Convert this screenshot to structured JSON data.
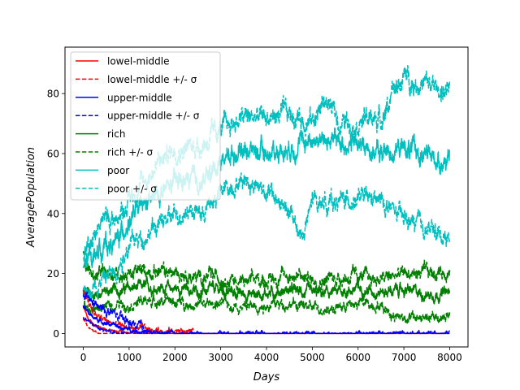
{
  "chart_data": {
    "type": "line",
    "xlabel": "Days",
    "ylabel": "AveragePopulation",
    "xlim": [
      -400,
      8400
    ],
    "ylim": [
      -4.5,
      95.5
    ],
    "xticks": [
      0,
      1000,
      2000,
      3000,
      4000,
      5000,
      6000,
      7000,
      8000
    ],
    "yticks": [
      0,
      20,
      40,
      60,
      80
    ],
    "grid": false,
    "legend_position": "upper-left",
    "legend": [
      {
        "label": "lowel-middle",
        "color": "#ff0000",
        "dash": "solid"
      },
      {
        "label": "lowel-middle +/- σ",
        "color": "#ff0000",
        "dash": "dashed"
      },
      {
        "label": "upper-middle",
        "color": "#0000ff",
        "dash": "solid"
      },
      {
        "label": "upper-middle +/- σ",
        "color": "#0000ff",
        "dash": "dashed"
      },
      {
        "label": "rich",
        "color": "#008000",
        "dash": "solid"
      },
      {
        "label": "rich +/- σ",
        "color": "#008000",
        "dash": "dashed"
      },
      {
        "label": "poor",
        "color": "#00bfbf",
        "dash": "solid"
      },
      {
        "label": "poor +/- σ",
        "color": "#00bfbf",
        "dash": "dashed"
      }
    ],
    "series": [
      {
        "name": "lowel-middle",
        "color": "#ff0000",
        "dash": "solid",
        "noise": 0.4,
        "x": [
          0,
          50,
          100,
          200,
          300,
          400,
          600,
          800,
          1000,
          1200,
          1500,
          2000,
          8000
        ],
        "y": [
          9,
          7,
          5,
          3.5,
          2.5,
          1.8,
          1.0,
          0.6,
          0.3,
          0.2,
          0.1,
          0,
          0
        ]
      },
      {
        "name": "lowel-middle +/- σ",
        "color": "#ff0000",
        "dash": "dashed",
        "noise": 0.9,
        "x": [
          0,
          100,
          200,
          300,
          500,
          700,
          1000,
          1300,
          1700,
          2000,
          2400
        ],
        "y": [
          14,
          11,
          8,
          6,
          4,
          3,
          2,
          1.5,
          1,
          0.8,
          0.5
        ]
      },
      {
        "name": "lowel-middle +/- σ",
        "color": "#ff0000",
        "dash": "dashed",
        "noise": 0.3,
        "x": [
          0,
          100,
          200,
          300,
          400,
          600
        ],
        "y": [
          5,
          2.5,
          1,
          0.3,
          0,
          0
        ]
      },
      {
        "name": "upper-middle",
        "color": "#0000ff",
        "dash": "solid",
        "noise": 0.6,
        "x": [
          0,
          100,
          200,
          400,
          600,
          800,
          1000,
          1200,
          1500,
          2000,
          8000
        ],
        "y": [
          9,
          7,
          5.5,
          4,
          3,
          2,
          1.3,
          0.8,
          0.3,
          0,
          0
        ]
      },
      {
        "name": "upper-middle +/- σ",
        "color": "#0000ff",
        "dash": "dashed",
        "noise": 1.4,
        "x": [
          0,
          200,
          400,
          600,
          800,
          1000,
          1200,
          1400
        ],
        "y": [
          13,
          10,
          8,
          7,
          5,
          3.5,
          2,
          1
        ]
      },
      {
        "name": "upper-middle +/- σ",
        "color": "#0000ff",
        "dash": "dashed",
        "noise": 0.5,
        "x": [
          0,
          200,
          400,
          600,
          800,
          1000
        ],
        "y": [
          5,
          3,
          1.5,
          0.5,
          0,
          0
        ]
      },
      {
        "name": "rich",
        "color": "#008000",
        "dash": "solid",
        "noise": 1.6,
        "x": [
          0,
          200,
          500,
          1000,
          1500,
          2000,
          2500,
          3000,
          3500,
          4000,
          4500,
          5000,
          5500,
          6000,
          6500,
          7000,
          7500,
          8000
        ],
        "y": [
          14,
          13,
          14,
          15,
          15.5,
          15,
          14,
          14.5,
          13,
          13.5,
          14.5,
          13,
          13.5,
          15,
          14,
          14.5,
          13,
          13.5
        ]
      },
      {
        "name": "rich +/- σ",
        "color": "#008000",
        "dash": "dashed",
        "noise": 2.0,
        "x": [
          0,
          200,
          500,
          1000,
          1500,
          2000,
          2500,
          3000,
          3500,
          4000,
          4500,
          5000,
          5500,
          6000,
          6500,
          7000,
          7500,
          8000
        ],
        "y": [
          26,
          19,
          20,
          20,
          21,
          20,
          18.5,
          19,
          17,
          18,
          19.5,
          18,
          18.5,
          19,
          18,
          20,
          20,
          21
        ]
      },
      {
        "name": "rich +/- σ",
        "color": "#008000",
        "dash": "dashed",
        "noise": 1.5,
        "x": [
          0,
          200,
          500,
          1000,
          1500,
          2000,
          2500,
          3000,
          3500,
          4000,
          4500,
          5000,
          5500,
          6000,
          6500,
          6800,
          7000,
          7500,
          8000
        ],
        "y": [
          9,
          8,
          9,
          10,
          11,
          10.5,
          9.5,
          10,
          9,
          9.5,
          10,
          8.5,
          8.5,
          10,
          9.5,
          6,
          5.5,
          5,
          5.5
        ]
      },
      {
        "name": "poor",
        "color": "#00bfbf",
        "dash": "solid",
        "noise": 2.8,
        "x": [
          0,
          200,
          400,
          700,
          1000,
          1300,
          1600,
          2000,
          2300,
          2600,
          3000,
          3500,
          4000,
          4500,
          5000,
          5500,
          6000,
          6500,
          7000,
          7500,
          8000
        ],
        "y": [
          22,
          26,
          29,
          30,
          38,
          42,
          46,
          50,
          51,
          50,
          58,
          62,
          60,
          62,
          65,
          64,
          63,
          60,
          62,
          59,
          57
        ]
      },
      {
        "name": "poor +/- σ",
        "color": "#00bfbf",
        "dash": "dashed",
        "noise": 3.0,
        "x": [
          0,
          200,
          400,
          700,
          1000,
          1300,
          1600,
          2000,
          2300,
          2600,
          3000,
          3500,
          4000,
          4500,
          5000,
          5300,
          5600,
          6000,
          6500,
          7000,
          7200,
          7500,
          7800,
          8000
        ],
        "y": [
          26,
          33,
          38,
          38,
          45,
          50,
          56,
          62,
          62,
          63,
          68,
          72,
          72,
          73,
          71,
          78,
          70,
          71,
          72,
          86,
          84,
          83,
          81,
          80
        ]
      },
      {
        "name": "poor +/- σ",
        "color": "#00bfbf",
        "dash": "dashed",
        "noise": 2.6,
        "x": [
          0,
          200,
          400,
          700,
          1000,
          1300,
          1600,
          2000,
          2300,
          2600,
          3000,
          3500,
          4000,
          4500,
          4800,
          5000,
          5500,
          6000,
          6500,
          7000,
          7500,
          8000
        ],
        "y": [
          13,
          16,
          18,
          21,
          30,
          32,
          36,
          39,
          42,
          40,
          47,
          52,
          48,
          40,
          32,
          44,
          44,
          45,
          44,
          38,
          35,
          32
        ]
      }
    ]
  }
}
